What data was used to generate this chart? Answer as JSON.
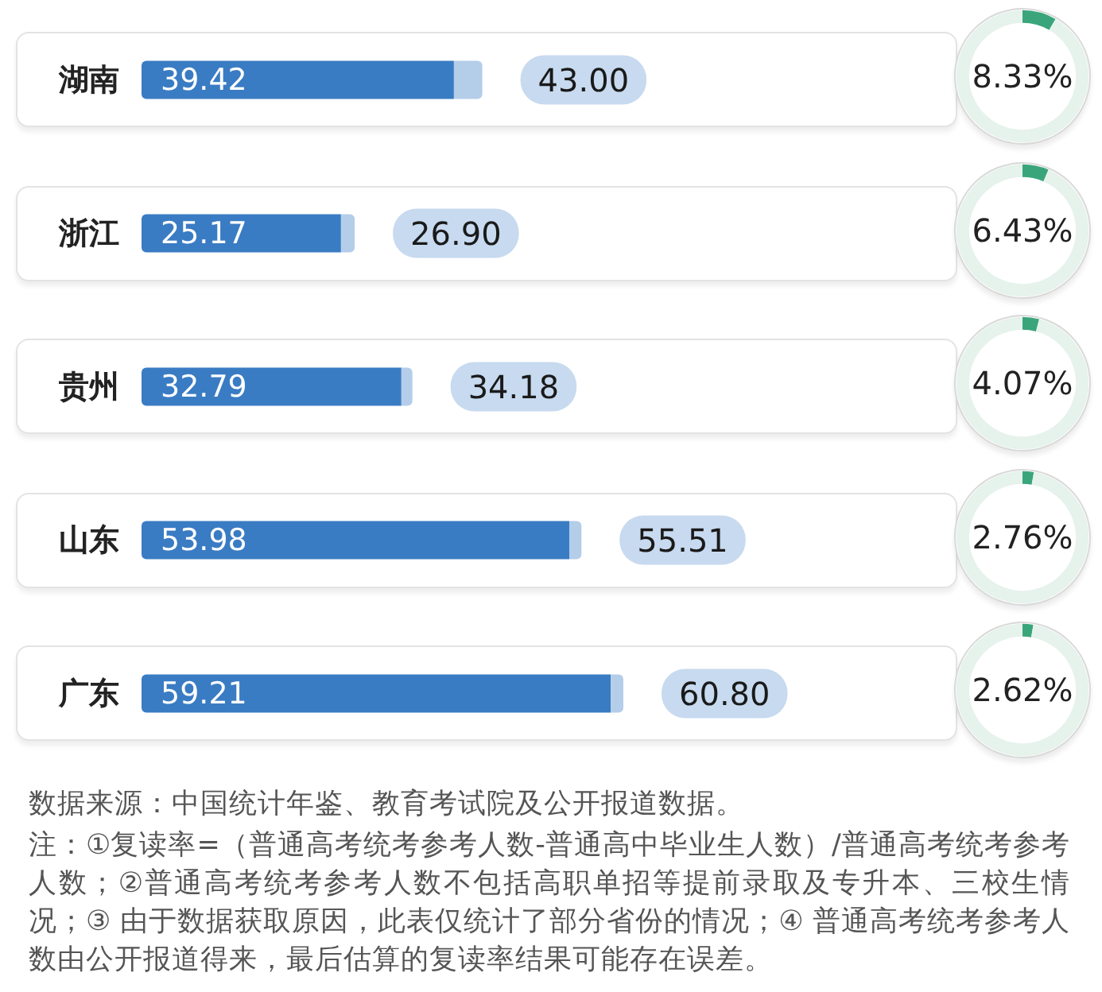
{
  "chart_data": [
    {
      "type": "bar",
      "orientation": "horizontal",
      "stacked": true,
      "tick_labels": "y",
      "categories": [
        "湖南",
        "浙江",
        "贵州",
        "山东",
        "广东"
      ],
      "series": [
        {
          "color": "#3a7cc3",
          "values": [
            39.42,
            25.17,
            32.79,
            53.98,
            59.21
          ],
          "value_labels": [
            "39.42",
            "25.17",
            "32.79",
            "53.98",
            "59.21"
          ]
        },
        {
          "color": "#b4cde9",
          "values": [
            3.58,
            1.73,
            1.39,
            1.53,
            1.59
          ]
        }
      ],
      "totals": [
        "43.00",
        "26.90",
        "34.18",
        "55.51",
        "60.80"
      ],
      "annotations": [
        "数据来源：中国统计年鉴、教育考试院及公开报道数据。",
        "注：①复读率=（普通高考统考参考人数-普通高中毕业生人数）/普通高考统考参考人数；②普通高考统考参考人数不包括高职单招等提前录取及专升本、三校生情况；③ 由于数据获取原因，此表仅统计了部分省份的情况；④ 普通高考统考参考人数由公开报道得来，最后估算的复读率结果可能存在误差。"
      ]
    },
    {
      "type": "donut",
      "categories": [
        null,
        null
      ],
      "values": [
        8.33,
        91.67
      ],
      "colors": [
        "#3aa57b",
        "#e6f2ec"
      ],
      "value_labels": [
        "8.33%",
        null
      ]
    },
    {
      "type": "donut",
      "categories": [
        null,
        null
      ],
      "values": [
        6.43,
        93.57
      ],
      "colors": [
        "#3aa57b",
        "#e6f2ec"
      ],
      "value_labels": [
        "6.43%",
        null
      ]
    },
    {
      "type": "donut",
      "categories": [
        null,
        null
      ],
      "values": [
        4.07,
        95.93
      ],
      "colors": [
        "#3aa57b",
        "#e6f2ec"
      ],
      "value_labels": [
        "4.07%",
        null
      ]
    },
    {
      "type": "donut",
      "categories": [
        null,
        null
      ],
      "values": [
        2.76,
        97.24
      ],
      "colors": [
        "#3aa57b",
        "#e6f2ec"
      ],
      "value_labels": [
        "2.76%",
        null
      ]
    },
    {
      "type": "donut",
      "categories": [
        null,
        null
      ],
      "values": [
        2.62,
        97.38
      ],
      "colors": [
        "#3aa57b",
        "#e6f2ec"
      ],
      "value_labels": [
        "2.62%",
        null
      ]
    }
  ]
}
